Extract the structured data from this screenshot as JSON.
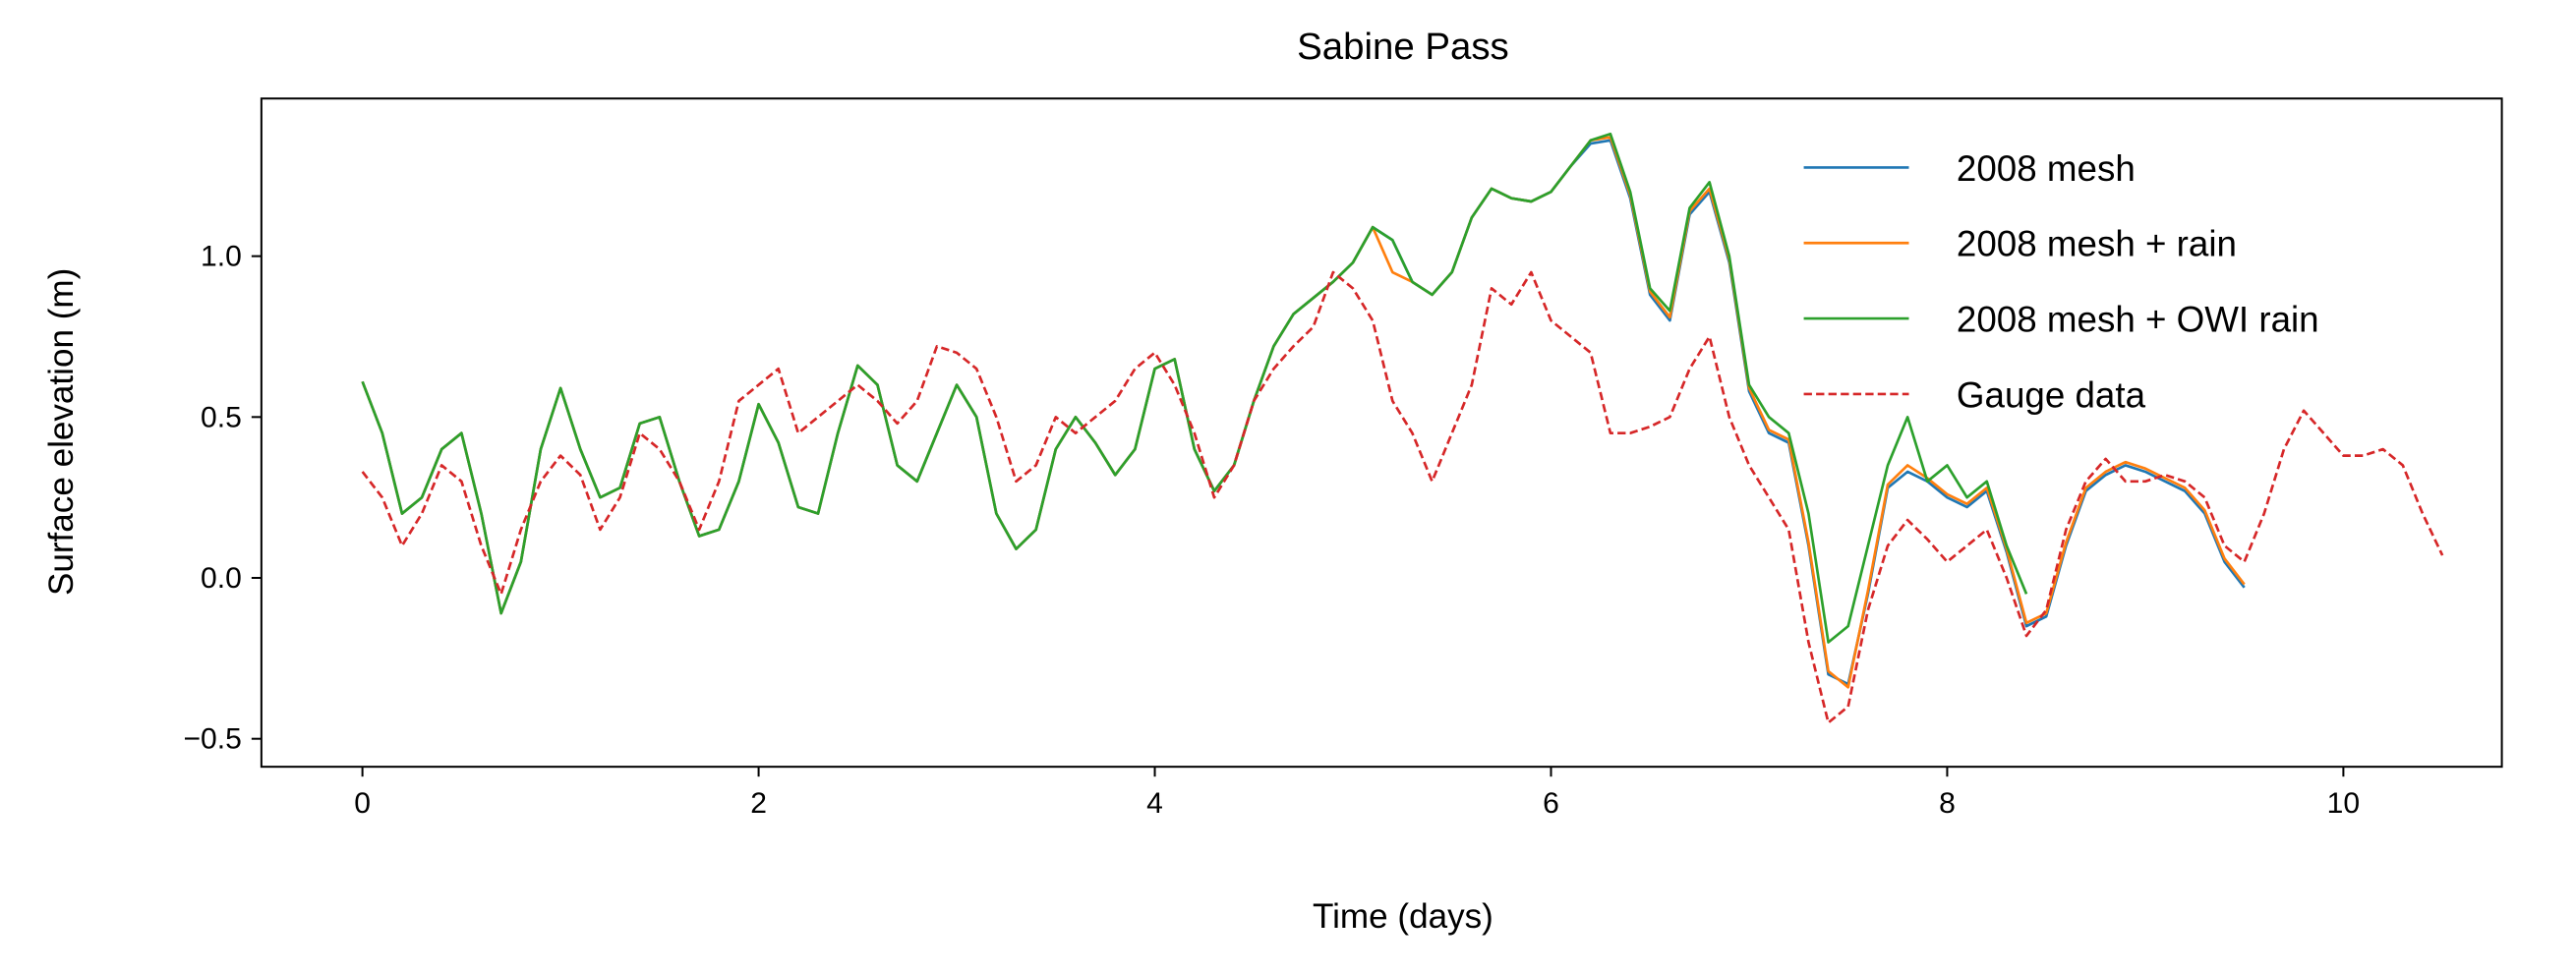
{
  "chart_data": {
    "type": "line",
    "title": "Sabine Pass",
    "x_label": "Time (days)",
    "y_label": "Surface elevation (m)",
    "xlim": [
      -0.51,
      10.8
    ],
    "ylim": [
      -0.587,
      1.49
    ],
    "xticks": [
      0,
      2,
      4,
      6,
      8,
      10
    ],
    "yticks": [
      {
        "value": -0.5,
        "label": "−0.5"
      },
      {
        "value": 0,
        "label": "0.0"
      },
      0.5,
      {
        "value": 1,
        "label": "1.0"
      }
    ],
    "legend": "upper right",
    "grid": false,
    "series": [
      {
        "name": "2008 mesh",
        "color": "#1f77b4",
        "linestyle": "solid",
        "x": [
          0,
          0.1,
          0.2,
          0.3,
          0.4,
          0.5,
          0.6,
          0.7,
          0.8,
          0.9,
          1,
          1.1,
          1.2,
          1.3,
          1.4,
          1.5,
          1.6,
          1.7,
          1.8,
          1.9,
          2,
          2.1,
          2.2,
          2.3,
          2.4,
          2.5,
          2.6,
          2.7,
          2.8,
          2.9,
          3,
          3.1,
          3.2,
          3.3,
          3.4,
          3.5,
          3.6,
          3.7,
          3.8,
          3.9,
          4,
          4.1,
          4.2,
          4.3,
          4.4,
          4.5,
          4.6,
          4.7,
          4.8,
          4.9,
          5,
          5.1,
          5.2,
          5.3,
          5.4,
          5.5,
          5.6,
          5.7,
          5.8,
          5.9,
          6,
          6.1,
          6.2,
          6.3,
          6.4,
          6.5,
          6.6,
          6.7,
          6.8,
          6.9,
          7,
          7.1,
          7.2,
          7.3,
          7.4,
          7.5,
          7.6,
          7.7,
          7.8,
          7.9,
          8,
          8.1,
          8.2,
          8.3,
          8.4,
          8.5,
          8.6,
          8.7,
          8.8,
          8.9,
          9,
          9.1,
          9.2,
          9.3,
          9.4,
          9.5
        ],
        "values": [
          0.61,
          0.45,
          0.2,
          0.25,
          0.4,
          0.45,
          0.2,
          -0.11,
          0.05,
          0.4,
          0.59,
          0.4,
          0.25,
          0.28,
          0.48,
          0.5,
          0.3,
          0.13,
          0.15,
          0.3,
          0.54,
          0.42,
          0.22,
          0.2,
          0.45,
          0.66,
          0.6,
          0.35,
          0.3,
          0.45,
          0.6,
          0.5,
          0.2,
          0.09,
          0.15,
          0.4,
          0.5,
          0.42,
          0.32,
          0.4,
          0.65,
          0.68,
          0.4,
          0.27,
          0.35,
          0.55,
          0.72,
          0.82,
          0.87,
          0.92,
          0.98,
          1.09,
          1.05,
          0.92,
          0.88,
          0.95,
          1.12,
          1.21,
          1.18,
          1.17,
          1.2,
          1.28,
          1.35,
          1.36,
          1.18,
          0.88,
          0.8,
          1.13,
          1.2,
          0.98,
          0.58,
          0.45,
          0.42,
          0.1,
          -0.3,
          -0.33,
          -0.05,
          0.28,
          0.33,
          0.3,
          0.25,
          0.22,
          0.27,
          0.08,
          -0.15,
          -0.12,
          0.1,
          0.27,
          0.32,
          0.35,
          0.33,
          0.3,
          0.27,
          0.2,
          0.05,
          -0.03
        ]
      },
      {
        "name": "2008 mesh + rain",
        "color": "#ff7f0e",
        "linestyle": "solid",
        "x": [
          0,
          0.1,
          0.2,
          0.3,
          0.4,
          0.5,
          0.6,
          0.7,
          0.8,
          0.9,
          1,
          1.1,
          1.2,
          1.3,
          1.4,
          1.5,
          1.6,
          1.7,
          1.8,
          1.9,
          2,
          2.1,
          2.2,
          2.3,
          2.4,
          2.5,
          2.6,
          2.7,
          2.8,
          2.9,
          3,
          3.1,
          3.2,
          3.3,
          3.4,
          3.5,
          3.6,
          3.7,
          3.8,
          3.9,
          4,
          4.1,
          4.2,
          4.3,
          4.4,
          4.5,
          4.6,
          4.7,
          4.8,
          4.9,
          5,
          5.1,
          5.2,
          5.3,
          5.4,
          5.5,
          5.6,
          5.7,
          5.8,
          5.9,
          6,
          6.1,
          6.2,
          6.3,
          6.4,
          6.5,
          6.6,
          6.7,
          6.8,
          6.9,
          7,
          7.1,
          7.2,
          7.3,
          7.4,
          7.5,
          7.6,
          7.7,
          7.8,
          7.9,
          8,
          8.1,
          8.2,
          8.3,
          8.4,
          8.5,
          8.6,
          8.7,
          8.8,
          8.9,
          9,
          9.1,
          9.2,
          9.3,
          9.4,
          9.5
        ],
        "values": [
          0.61,
          0.45,
          0.2,
          0.25,
          0.4,
          0.45,
          0.2,
          -0.11,
          0.05,
          0.4,
          0.59,
          0.4,
          0.25,
          0.28,
          0.48,
          0.5,
          0.3,
          0.13,
          0.15,
          0.3,
          0.54,
          0.42,
          0.22,
          0.2,
          0.45,
          0.66,
          0.6,
          0.35,
          0.3,
          0.45,
          0.6,
          0.5,
          0.2,
          0.09,
          0.15,
          0.4,
          0.5,
          0.42,
          0.32,
          0.4,
          0.65,
          0.68,
          0.4,
          0.27,
          0.35,
          0.55,
          0.72,
          0.82,
          0.87,
          0.92,
          0.98,
          1.09,
          0.95,
          0.92,
          0.88,
          0.95,
          1.12,
          1.21,
          1.18,
          1.17,
          1.2,
          1.28,
          1.36,
          1.37,
          1.19,
          0.89,
          0.81,
          1.14,
          1.21,
          0.99,
          0.59,
          0.46,
          0.43,
          0.11,
          -0.29,
          -0.34,
          -0.04,
          0.29,
          0.35,
          0.31,
          0.26,
          0.23,
          0.28,
          0.09,
          -0.14,
          -0.11,
          0.11,
          0.28,
          0.33,
          0.36,
          0.34,
          0.31,
          0.28,
          0.21,
          0.06,
          -0.02
        ]
      },
      {
        "name": "2008 mesh + OWI rain",
        "color": "#2ca02c",
        "linestyle": "solid",
        "x": [
          0,
          0.1,
          0.2,
          0.3,
          0.4,
          0.5,
          0.6,
          0.7,
          0.8,
          0.9,
          1,
          1.1,
          1.2,
          1.3,
          1.4,
          1.5,
          1.6,
          1.7,
          1.8,
          1.9,
          2,
          2.1,
          2.2,
          2.3,
          2.4,
          2.5,
          2.6,
          2.7,
          2.8,
          2.9,
          3,
          3.1,
          3.2,
          3.3,
          3.4,
          3.5,
          3.6,
          3.7,
          3.8,
          3.9,
          4,
          4.1,
          4.2,
          4.3,
          4.4,
          4.5,
          4.6,
          4.7,
          4.8,
          4.9,
          5,
          5.1,
          5.2,
          5.3,
          5.4,
          5.5,
          5.6,
          5.7,
          5.8,
          5.9,
          6,
          6.1,
          6.2,
          6.3,
          6.4,
          6.5,
          6.6,
          6.7,
          6.8,
          6.9,
          7,
          7.1,
          7.2,
          7.3,
          7.4,
          7.5,
          7.6,
          7.7,
          7.8,
          7.9,
          8,
          8.1,
          8.2,
          8.3,
          8.4
        ],
        "values": [
          0.61,
          0.45,
          0.2,
          0.25,
          0.4,
          0.45,
          0.2,
          -0.11,
          0.05,
          0.4,
          0.59,
          0.4,
          0.25,
          0.28,
          0.48,
          0.5,
          0.3,
          0.13,
          0.15,
          0.3,
          0.54,
          0.42,
          0.22,
          0.2,
          0.45,
          0.66,
          0.6,
          0.35,
          0.3,
          0.45,
          0.6,
          0.5,
          0.2,
          0.09,
          0.15,
          0.4,
          0.5,
          0.42,
          0.32,
          0.4,
          0.65,
          0.68,
          0.4,
          0.27,
          0.35,
          0.55,
          0.72,
          0.82,
          0.87,
          0.92,
          0.98,
          1.09,
          1.05,
          0.92,
          0.88,
          0.95,
          1.12,
          1.21,
          1.18,
          1.17,
          1.2,
          1.28,
          1.36,
          1.38,
          1.2,
          0.9,
          0.83,
          1.15,
          1.23,
          1.0,
          0.6,
          0.5,
          0.45,
          0.2,
          -0.2,
          -0.15,
          0.1,
          0.35,
          0.5,
          0.3,
          0.35,
          0.25,
          0.3,
          0.1,
          -0.05
        ]
      },
      {
        "name": "Gauge data",
        "color": "#d62728",
        "linestyle": "dashed",
        "x": [
          0,
          0.1,
          0.2,
          0.3,
          0.4,
          0.5,
          0.6,
          0.7,
          0.8,
          0.9,
          1,
          1.1,
          1.2,
          1.3,
          1.4,
          1.5,
          1.6,
          1.7,
          1.8,
          1.9,
          2,
          2.1,
          2.2,
          2.3,
          2.4,
          2.5,
          2.6,
          2.7,
          2.8,
          2.9,
          3,
          3.1,
          3.2,
          3.3,
          3.4,
          3.5,
          3.6,
          3.7,
          3.8,
          3.9,
          4,
          4.1,
          4.2,
          4.3,
          4.4,
          4.5,
          4.6,
          4.7,
          4.8,
          4.9,
          5,
          5.1,
          5.2,
          5.3,
          5.4,
          5.5,
          5.6,
          5.7,
          5.8,
          5.9,
          6,
          6.1,
          6.2,
          6.3,
          6.4,
          6.5,
          6.6,
          6.7,
          6.8,
          6.9,
          7,
          7.1,
          7.2,
          7.3,
          7.4,
          7.5,
          7.6,
          7.7,
          7.8,
          7.9,
          8,
          8.1,
          8.2,
          8.3,
          8.4,
          8.5,
          8.6,
          8.7,
          8.8,
          8.9,
          9,
          9.1,
          9.2,
          9.3,
          9.4,
          9.5,
          9.6,
          9.7,
          9.8,
          9.9,
          10,
          10.1,
          10.2,
          10.3,
          10.4,
          10.5
        ],
        "values": [
          0.33,
          0.25,
          0.1,
          0.2,
          0.35,
          0.3,
          0.1,
          -0.05,
          0.15,
          0.3,
          0.38,
          0.32,
          0.15,
          0.25,
          0.45,
          0.4,
          0.3,
          0.15,
          0.3,
          0.55,
          0.6,
          0.65,
          0.45,
          0.5,
          0.55,
          0.6,
          0.55,
          0.48,
          0.55,
          0.72,
          0.7,
          0.65,
          0.5,
          0.3,
          0.35,
          0.5,
          0.45,
          0.5,
          0.55,
          0.65,
          0.7,
          0.6,
          0.45,
          0.25,
          0.35,
          0.55,
          0.65,
          0.72,
          0.78,
          0.95,
          0.9,
          0.8,
          0.55,
          0.45,
          0.3,
          0.45,
          0.6,
          0.9,
          0.85,
          0.95,
          0.8,
          0.75,
          0.7,
          0.45,
          0.45,
          0.47,
          0.5,
          0.65,
          0.75,
          0.5,
          0.35,
          0.25,
          0.15,
          -0.2,
          -0.45,
          -0.4,
          -0.1,
          0.1,
          0.18,
          0.12,
          0.05,
          0.1,
          0.15,
          0.0,
          -0.18,
          -0.1,
          0.15,
          0.3,
          0.37,
          0.3,
          0.3,
          0.32,
          0.3,
          0.25,
          0.1,
          0.05,
          0.2,
          0.4,
          0.52,
          0.45,
          0.38,
          0.38,
          0.4,
          0.35,
          0.2,
          0.07
        ]
      }
    ]
  }
}
